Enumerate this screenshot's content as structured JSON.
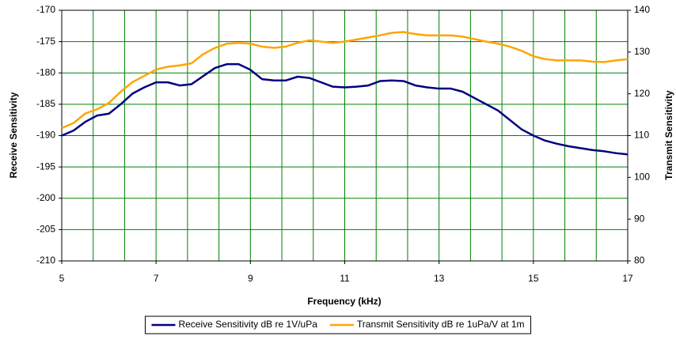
{
  "chart_data": {
    "type": "line",
    "xlabel": "Frequency (kHz)",
    "ylabel": "Receive Sensitivity",
    "y2label": "Transmit Sensitivity",
    "x": [
      5,
      5.25,
      5.5,
      5.75,
      6,
      6.25,
      6.5,
      6.75,
      7,
      7.25,
      7.5,
      7.75,
      8,
      8.25,
      8.5,
      8.75,
      9,
      9.25,
      9.5,
      9.75,
      10,
      10.25,
      10.5,
      10.75,
      11,
      11.25,
      11.5,
      11.75,
      12,
      12.25,
      12.5,
      12.75,
      13,
      13.25,
      13.5,
      13.75,
      14,
      14.25,
      14.5,
      14.75,
      15,
      15.25,
      15.5,
      15.75,
      16,
      16.25,
      16.5,
      16.75,
      17
    ],
    "series": [
      {
        "name": "Receive Sensitivity dB re 1V/uPa",
        "color": "#000080",
        "axis": "y",
        "values": [
          -190,
          -189.2,
          -187.8,
          -186.8,
          -186.5,
          -185,
          -183.3,
          -182.3,
          -181.5,
          -181.5,
          -182,
          -181.8,
          -180.5,
          -179.2,
          -178.6,
          -178.6,
          -179.5,
          -181,
          -181.2,
          -181.2,
          -180.6,
          -180.8,
          -181.5,
          -182.2,
          -182.3,
          -182.2,
          -182,
          -181.3,
          -181.2,
          -181.3,
          -182,
          -182.3,
          -182.5,
          -182.5,
          -183,
          -184,
          -185,
          -186,
          -187.5,
          -189,
          -190,
          -190.8,
          -191.3,
          -191.7,
          -192,
          -192.3,
          -192.5,
          -192.8,
          -193
        ]
      },
      {
        "name": "Transmit Sensitivity dB re 1uPa/V at 1m",
        "color": "#ffa500",
        "axis": "y2",
        "values": [
          111.8,
          113,
          115.3,
          116.3,
          117.8,
          120.5,
          122.8,
          124.3,
          125.8,
          126.5,
          126.8,
          127.3,
          129.5,
          131,
          132,
          132.2,
          132,
          131.3,
          131,
          131.3,
          132.2,
          132.8,
          132.5,
          132.2,
          132.5,
          133,
          133.5,
          134,
          134.6,
          134.8,
          134.3,
          134,
          134,
          134,
          133.7,
          133.1,
          132.5,
          132,
          131.3,
          130.3,
          129,
          128.3,
          128,
          128,
          128,
          127.7,
          127.6,
          128,
          128.3
        ]
      }
    ],
    "xlim": [
      5,
      17
    ],
    "xticks": [
      5,
      7,
      9,
      11,
      13,
      15,
      17
    ],
    "x_minor_divisions": 3,
    "ylim": [
      -210,
      -170
    ],
    "yticks": [
      -210,
      -205,
      -200,
      -195,
      -190,
      -185,
      -180,
      -175,
      -170
    ],
    "y2lim": [
      80,
      140
    ],
    "y2ticks": [
      80,
      90,
      100,
      110,
      120,
      130,
      140
    ],
    "grid": true,
    "grid_color": "#008000",
    "legend": "bottom"
  }
}
